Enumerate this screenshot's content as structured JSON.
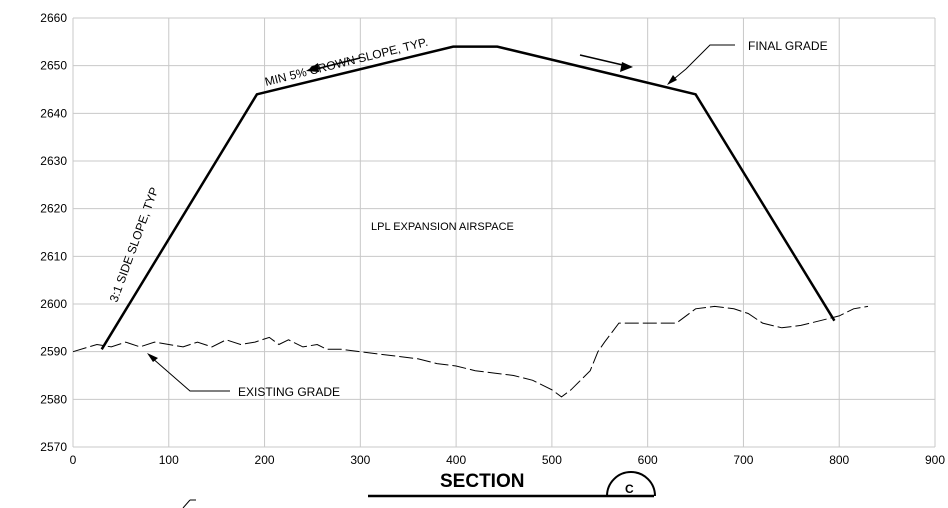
{
  "chart_data": {
    "type": "line",
    "title": "",
    "xlabel": "",
    "ylabel": "",
    "xlim": [
      0,
      900
    ],
    "ylim": [
      2570,
      2660
    ],
    "x_ticks": [
      0,
      100,
      200,
      300,
      400,
      500,
      600,
      700,
      800,
      900
    ],
    "y_ticks": [
      2570,
      2580,
      2590,
      2600,
      2610,
      2620,
      2630,
      2640,
      2650,
      2660
    ],
    "grid": true,
    "series": [
      {
        "name": "FINAL GRADE",
        "style": "solid-thick",
        "x": [
          30,
          192,
          397,
          443,
          650,
          795
        ],
        "y": [
          2590.5,
          2644,
          2654,
          2654,
          2644,
          2596.5
        ]
      },
      {
        "name": "EXISTING GRADE",
        "style": "dashed",
        "x": [
          0,
          25,
          40,
          55,
          70,
          85,
          100,
          115,
          130,
          145,
          160,
          175,
          190,
          205,
          215,
          225,
          240,
          255,
          265,
          280,
          300,
          320,
          340,
          360,
          380,
          400,
          420,
          440,
          460,
          480,
          500,
          510,
          520,
          540,
          548,
          555,
          570,
          590,
          610,
          630,
          650,
          670,
          690,
          705,
          720,
          740,
          760,
          780,
          800,
          815,
          830
        ],
        "y": [
          2590,
          2591.5,
          2591,
          2592,
          2591,
          2592,
          2591.5,
          2591,
          2592,
          2591,
          2592.5,
          2591.5,
          2592,
          2593,
          2591.5,
          2592.5,
          2591,
          2591.5,
          2590.5,
          2590.5,
          2590,
          2589.5,
          2589,
          2588.5,
          2587.5,
          2587,
          2586,
          2585.5,
          2585,
          2584,
          2582,
          2580.5,
          2582,
          2586,
          2590,
          2592,
          2596,
          2596,
          2596,
          2596,
          2599,
          2599.5,
          2599,
          2598,
          2596,
          2595,
          2595.5,
          2596.5,
          2597.5,
          2599,
          2599.5
        ]
      }
    ],
    "annotations": {
      "crown_slope": "MIN 5% CROWN SLOPE, TYP.",
      "side_slope": "3:1 SIDE SLOPE, TYP",
      "final_grade": "FINAL GRADE",
      "existing_grade": "EXISTING GRADE",
      "airspace": "LPL EXPANSION AIRSPACE"
    },
    "section_title": "SECTION",
    "section_marker": "C"
  }
}
